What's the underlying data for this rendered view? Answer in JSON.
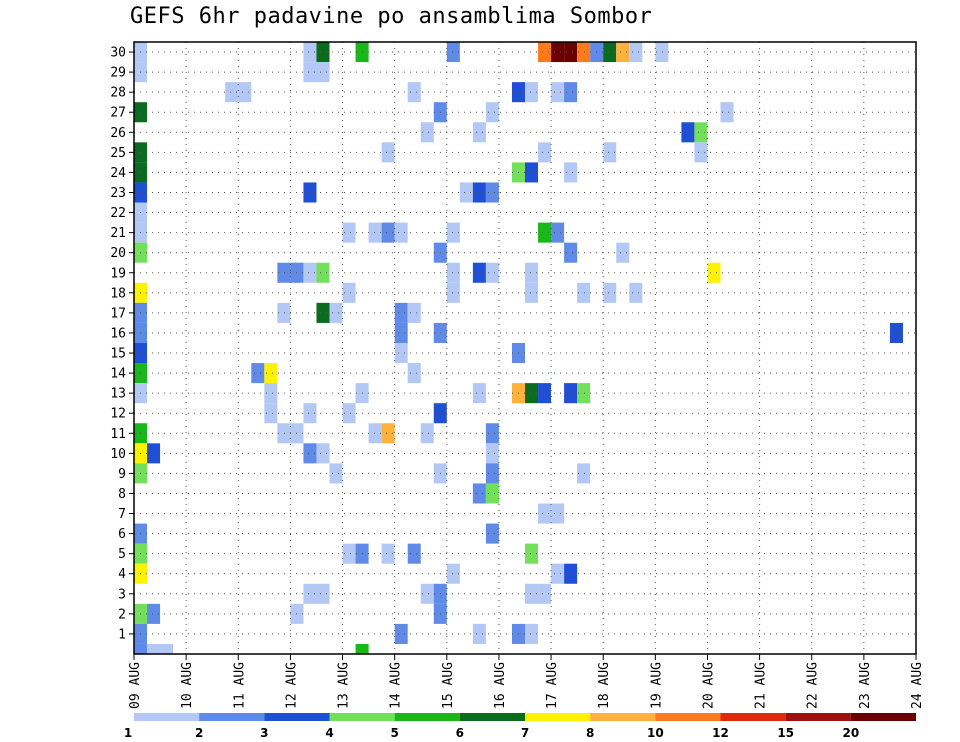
{
  "chart_data": {
    "type": "heatmap",
    "title": "GEFS 6hr padavine po ansamblima Sombor",
    "x_tick_labels": [
      "09 AUG",
      "10 AUG",
      "11 AUG",
      "12 AUG",
      "13 AUG",
      "14 AUG",
      "15 AUG",
      "16 AUG",
      "17 AUG",
      "18 AUG",
      "19 AUG",
      "20 AUG",
      "21 AUG",
      "22 AUG",
      "23 AUG",
      "24 AUG"
    ],
    "y_tick_labels": [
      "1",
      "2",
      "3",
      "4",
      "5",
      "6",
      "7",
      "8",
      "9",
      "10",
      "11",
      "12",
      "13",
      "14",
      "15",
      "16",
      "17",
      "18",
      "19",
      "20",
      "21",
      "22",
      "23",
      "24",
      "25",
      "26",
      "27",
      "28",
      "29",
      "30"
    ],
    "xlim_steps": [
      0,
      60
    ],
    "ylim": [
      0,
      30
    ],
    "grid": true,
    "colorbar": {
      "labels": [
        "1",
        "2",
        "3",
        "4",
        "5",
        "6",
        "7",
        "8",
        "10",
        "12",
        "15",
        "20"
      ],
      "colors": [
        "#b3c8f5",
        "#5f8ae8",
        "#1f4fd6",
        "#72e05a",
        "#18b818",
        "#0b6b1e",
        "#fff200",
        "#ffb23a",
        "#ff7a1a",
        "#e02a10",
        "#a00f0f",
        "#6b0000"
      ]
    },
    "cells": [
      {
        "member": 30,
        "step": 1,
        "c": 1
      },
      {
        "member": 30,
        "step": 14,
        "c": 1
      },
      {
        "member": 30,
        "step": 15,
        "c": 6
      },
      {
        "member": 30,
        "step": 18,
        "c": 5
      },
      {
        "member": 30,
        "step": 25,
        "c": 2
      },
      {
        "member": 30,
        "step": 32,
        "c": 9
      },
      {
        "member": 30,
        "step": 33,
        "c": 12
      },
      {
        "member": 30,
        "step": 34,
        "c": 12
      },
      {
        "member": 30,
        "step": 35,
        "c": 9
      },
      {
        "member": 30,
        "step": 36,
        "c": 2
      },
      {
        "member": 30,
        "step": 37,
        "c": 6
      },
      {
        "member": 30,
        "step": 38,
        "c": 8
      },
      {
        "member": 30,
        "step": 39,
        "c": 1
      },
      {
        "member": 30,
        "step": 41,
        "c": 1
      },
      {
        "member": 29,
        "step": 1,
        "c": 1
      },
      {
        "member": 29,
        "step": 14,
        "c": 1
      },
      {
        "member": 29,
        "step": 15,
        "c": 1
      },
      {
        "member": 28,
        "step": 8,
        "c": 1
      },
      {
        "member": 28,
        "step": 9,
        "c": 1
      },
      {
        "member": 28,
        "step": 22,
        "c": 1
      },
      {
        "member": 28,
        "step": 30,
        "c": 3
      },
      {
        "member": 28,
        "step": 31,
        "c": 1
      },
      {
        "member": 28,
        "step": 33,
        "c": 1
      },
      {
        "member": 28,
        "step": 34,
        "c": 2
      },
      {
        "member": 27,
        "step": 1,
        "c": 6
      },
      {
        "member": 27,
        "step": 24,
        "c": 2
      },
      {
        "member": 27,
        "step": 28,
        "c": 1
      },
      {
        "member": 27,
        "step": 46,
        "c": 1
      },
      {
        "member": 26,
        "step": 23,
        "c": 1
      },
      {
        "member": 26,
        "step": 27,
        "c": 1
      },
      {
        "member": 26,
        "step": 43,
        "c": 3
      },
      {
        "member": 26,
        "step": 44,
        "c": 4
      },
      {
        "member": 25,
        "step": 1,
        "c": 6
      },
      {
        "member": 25,
        "step": 20,
        "c": 1
      },
      {
        "member": 25,
        "step": 32,
        "c": 1
      },
      {
        "member": 25,
        "step": 37,
        "c": 1
      },
      {
        "member": 25,
        "step": 44,
        "c": 1
      },
      {
        "member": 24,
        "step": 1,
        "c": 6
      },
      {
        "member": 24,
        "step": 30,
        "c": 4
      },
      {
        "member": 24,
        "step": 31,
        "c": 3
      },
      {
        "member": 24,
        "step": 34,
        "c": 1
      },
      {
        "member": 23,
        "step": 1,
        "c": 3
      },
      {
        "member": 23,
        "step": 14,
        "c": 3
      },
      {
        "member": 23,
        "step": 26,
        "c": 1
      },
      {
        "member": 23,
        "step": 27,
        "c": 3
      },
      {
        "member": 23,
        "step": 28,
        "c": 2
      },
      {
        "member": 22,
        "step": 1,
        "c": 1
      },
      {
        "member": 21,
        "step": 1,
        "c": 1
      },
      {
        "member": 21,
        "step": 17,
        "c": 1
      },
      {
        "member": 21,
        "step": 19,
        "c": 1
      },
      {
        "member": 21,
        "step": 20,
        "c": 2
      },
      {
        "member": 21,
        "step": 21,
        "c": 1
      },
      {
        "member": 21,
        "step": 25,
        "c": 1
      },
      {
        "member": 21,
        "step": 32,
        "c": 5
      },
      {
        "member": 21,
        "step": 33,
        "c": 2
      },
      {
        "member": 20,
        "step": 1,
        "c": 4
      },
      {
        "member": 20,
        "step": 24,
        "c": 2
      },
      {
        "member": 20,
        "step": 34,
        "c": 2
      },
      {
        "member": 20,
        "step": 38,
        "c": 1
      },
      {
        "member": 19,
        "step": 12,
        "c": 2
      },
      {
        "member": 19,
        "step": 13,
        "c": 2
      },
      {
        "member": 19,
        "step": 14,
        "c": 1
      },
      {
        "member": 19,
        "step": 15,
        "c": 4
      },
      {
        "member": 19,
        "step": 25,
        "c": 1
      },
      {
        "member": 19,
        "step": 27,
        "c": 3
      },
      {
        "member": 19,
        "step": 28,
        "c": 1
      },
      {
        "member": 19,
        "step": 31,
        "c": 1
      },
      {
        "member": 19,
        "step": 45,
        "c": 7
      },
      {
        "member": 18,
        "step": 1,
        "c": 7
      },
      {
        "member": 18,
        "step": 17,
        "c": 1
      },
      {
        "member": 18,
        "step": 25,
        "c": 1
      },
      {
        "member": 18,
        "step": 31,
        "c": 1
      },
      {
        "member": 18,
        "step": 35,
        "c": 1
      },
      {
        "member": 18,
        "step": 37,
        "c": 1
      },
      {
        "member": 18,
        "step": 39,
        "c": 1
      },
      {
        "member": 17,
        "step": 1,
        "c": 2
      },
      {
        "member": 17,
        "step": 12,
        "c": 1
      },
      {
        "member": 17,
        "step": 15,
        "c": 6
      },
      {
        "member": 17,
        "step": 16,
        "c": 1
      },
      {
        "member": 17,
        "step": 21,
        "c": 2
      },
      {
        "member": 17,
        "step": 22,
        "c": 1
      },
      {
        "member": 16,
        "step": 1,
        "c": 2
      },
      {
        "member": 16,
        "step": 21,
        "c": 2
      },
      {
        "member": 16,
        "step": 24,
        "c": 2
      },
      {
        "member": 16,
        "step": 59,
        "c": 3
      },
      {
        "member": 15,
        "step": 1,
        "c": 3
      },
      {
        "member": 15,
        "step": 21,
        "c": 1
      },
      {
        "member": 15,
        "step": 30,
        "c": 2
      },
      {
        "member": 14,
        "step": 1,
        "c": 5
      },
      {
        "member": 14,
        "step": 10,
        "c": 2
      },
      {
        "member": 14,
        "step": 11,
        "c": 7
      },
      {
        "member": 14,
        "step": 22,
        "c": 1
      },
      {
        "member": 13,
        "step": 1,
        "c": 1
      },
      {
        "member": 13,
        "step": 11,
        "c": 1
      },
      {
        "member": 13,
        "step": 18,
        "c": 1
      },
      {
        "member": 13,
        "step": 27,
        "c": 1
      },
      {
        "member": 13,
        "step": 30,
        "c": 8
      },
      {
        "member": 13,
        "step": 31,
        "c": 6
      },
      {
        "member": 13,
        "step": 32,
        "c": 3
      },
      {
        "member": 13,
        "step": 34,
        "c": 3
      },
      {
        "member": 13,
        "step": 35,
        "c": 4
      },
      {
        "member": 12,
        "step": 11,
        "c": 1
      },
      {
        "member": 12,
        "step": 14,
        "c": 1
      },
      {
        "member": 12,
        "step": 17,
        "c": 1
      },
      {
        "member": 12,
        "step": 24,
        "c": 3
      },
      {
        "member": 11,
        "step": 1,
        "c": 5
      },
      {
        "member": 11,
        "step": 12,
        "c": 1
      },
      {
        "member": 11,
        "step": 13,
        "c": 1
      },
      {
        "member": 11,
        "step": 19,
        "c": 1
      },
      {
        "member": 11,
        "step": 20,
        "c": 8
      },
      {
        "member": 11,
        "step": 23,
        "c": 1
      },
      {
        "member": 11,
        "step": 28,
        "c": 2
      },
      {
        "member": 10,
        "step": 1,
        "c": 7
      },
      {
        "member": 10,
        "step": 2,
        "c": 3
      },
      {
        "member": 10,
        "step": 14,
        "c": 2
      },
      {
        "member": 10,
        "step": 15,
        "c": 1
      },
      {
        "member": 10,
        "step": 28,
        "c": 1
      },
      {
        "member": 9,
        "step": 1,
        "c": 4
      },
      {
        "member": 9,
        "step": 16,
        "c": 1
      },
      {
        "member": 9,
        "step": 24,
        "c": 1
      },
      {
        "member": 9,
        "step": 28,
        "c": 2
      },
      {
        "member": 9,
        "step": 35,
        "c": 1
      },
      {
        "member": 8,
        "step": 27,
        "c": 2
      },
      {
        "member": 8,
        "step": 28,
        "c": 4
      },
      {
        "member": 7,
        "step": 32,
        "c": 1
      },
      {
        "member": 7,
        "step": 33,
        "c": 1
      },
      {
        "member": 6,
        "step": 1,
        "c": 2
      },
      {
        "member": 6,
        "step": 28,
        "c": 2
      },
      {
        "member": 5,
        "step": 1,
        "c": 4
      },
      {
        "member": 5,
        "step": 17,
        "c": 1
      },
      {
        "member": 5,
        "step": 18,
        "c": 2
      },
      {
        "member": 5,
        "step": 20,
        "c": 1
      },
      {
        "member": 5,
        "step": 22,
        "c": 2
      },
      {
        "member": 5,
        "step": 31,
        "c": 4
      },
      {
        "member": 4,
        "step": 1,
        "c": 7
      },
      {
        "member": 4,
        "step": 25,
        "c": 1
      },
      {
        "member": 4,
        "step": 33,
        "c": 1
      },
      {
        "member": 4,
        "step": 34,
        "c": 3
      },
      {
        "member": 3,
        "step": 14,
        "c": 1
      },
      {
        "member": 3,
        "step": 15,
        "c": 1
      },
      {
        "member": 3,
        "step": 23,
        "c": 1
      },
      {
        "member": 3,
        "step": 24,
        "c": 2
      },
      {
        "member": 3,
        "step": 31,
        "c": 1
      },
      {
        "member": 3,
        "step": 32,
        "c": 1
      },
      {
        "member": 2,
        "step": 1,
        "c": 4
      },
      {
        "member": 2,
        "step": 2,
        "c": 2
      },
      {
        "member": 2,
        "step": 13,
        "c": 1
      },
      {
        "member": 2,
        "step": 24,
        "c": 2
      },
      {
        "member": 1,
        "step": 1,
        "c": 2
      },
      {
        "member": 1,
        "step": 21,
        "c": 2
      },
      {
        "member": 1,
        "step": 27,
        "c": 1
      },
      {
        "member": 1,
        "step": 30,
        "c": 2
      },
      {
        "member": 1,
        "step": 31,
        "c": 1
      },
      {
        "member": 0,
        "step": 1,
        "c": 2
      },
      {
        "member": 0,
        "step": 2,
        "c": 1
      },
      {
        "member": 0,
        "step": 3,
        "c": 1
      },
      {
        "member": 0,
        "step": 18,
        "c": 5
      }
    ]
  }
}
